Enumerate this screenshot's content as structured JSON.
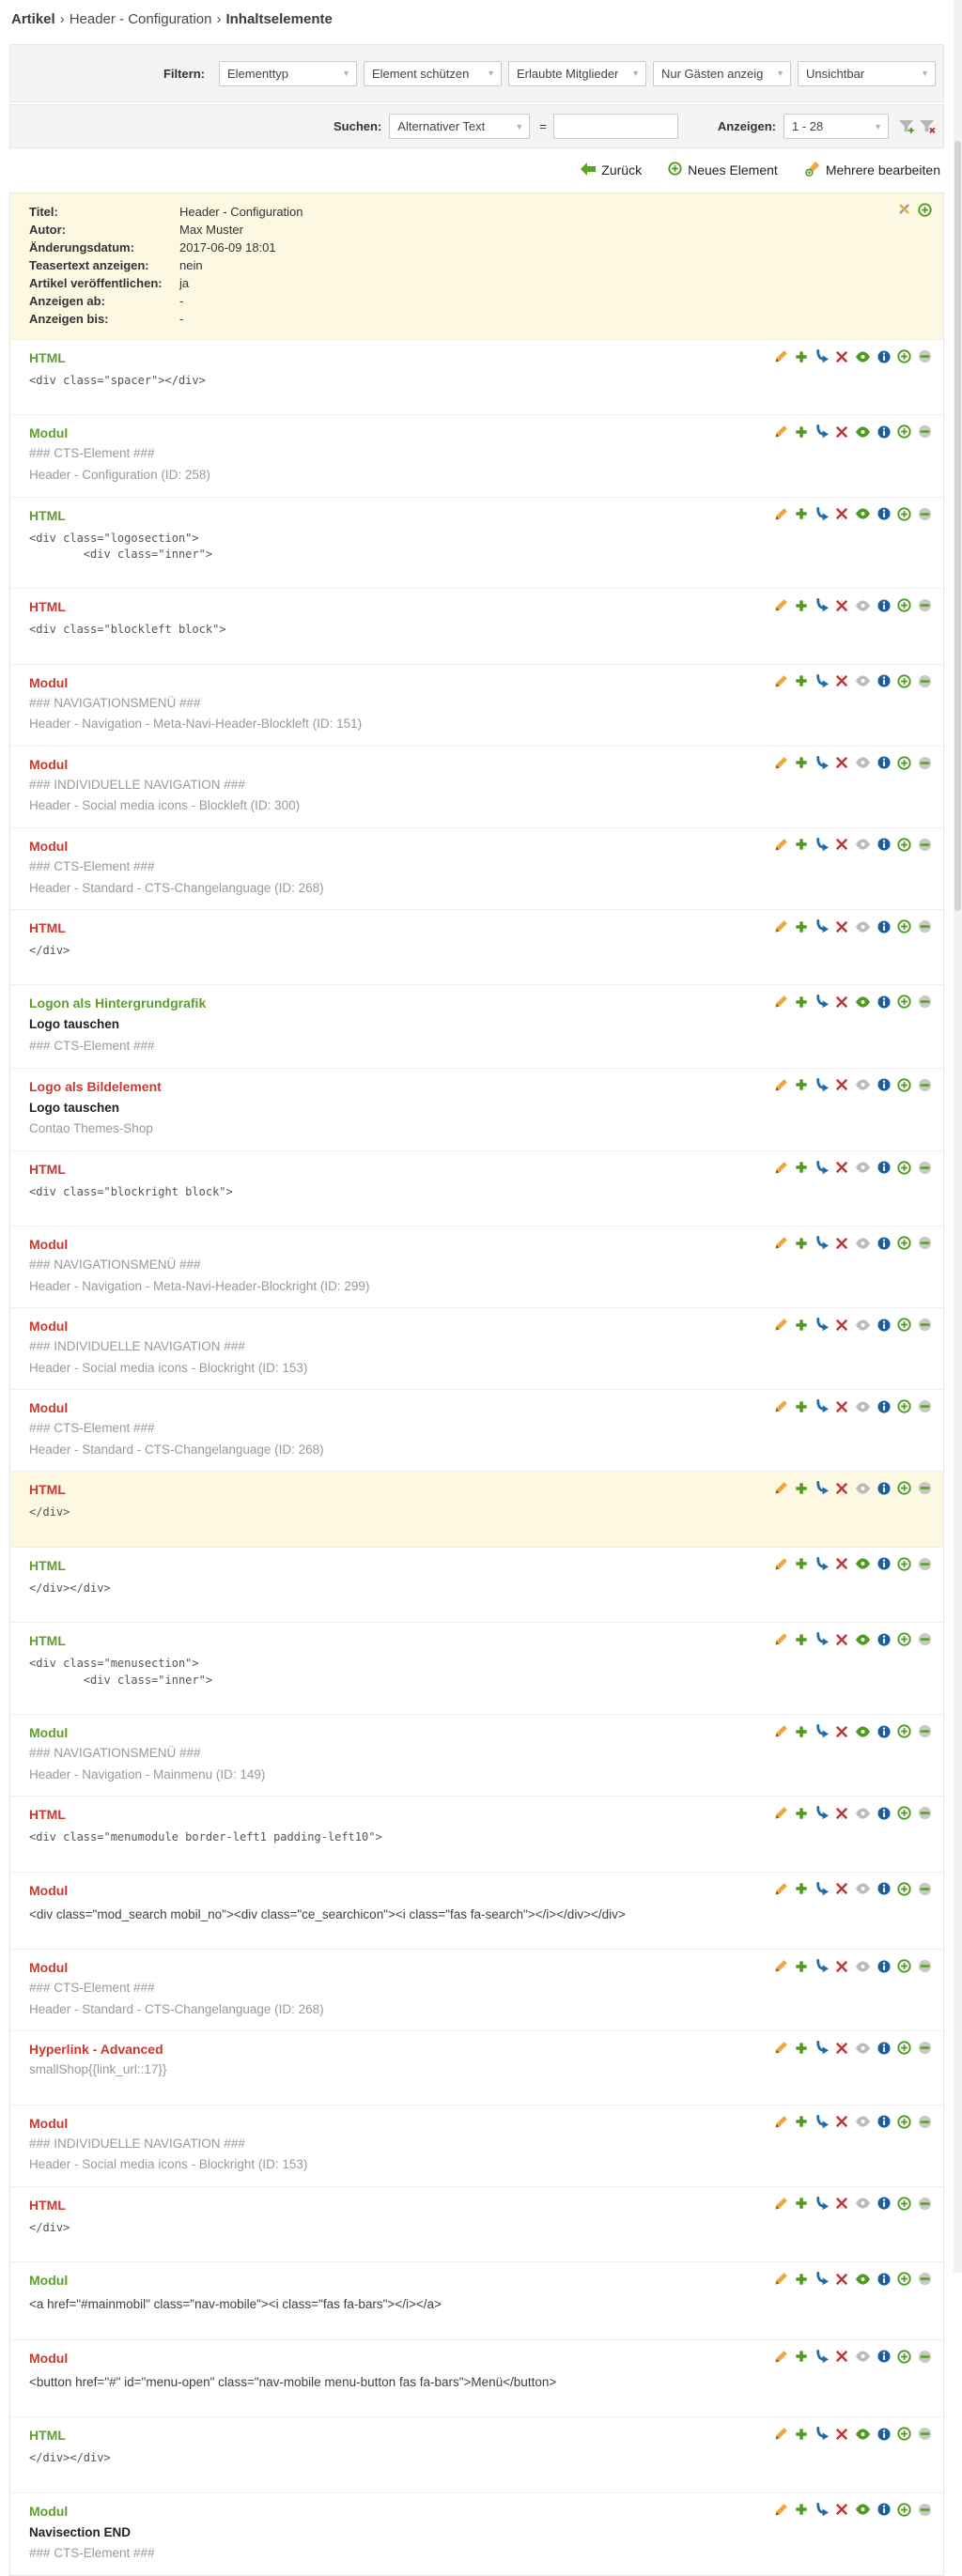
{
  "breadcrumb": {
    "parts": [
      "Artikel",
      "Header - Configuration",
      "Inhaltselemente"
    ],
    "separator": "›"
  },
  "filters": {
    "label": "Filtern:",
    "selects": [
      "Elementtyp",
      "Element schützen",
      "Erlaubte Mitglieder",
      "Nur Gästen anzeig",
      "Unsichtbar"
    ]
  },
  "search": {
    "label": "Suchen:",
    "field_select": "Alternativer Text",
    "equals": "=",
    "input_value": "",
    "show_label": "Anzeigen:",
    "range_select": "1 - 28"
  },
  "actions": {
    "back": "Zurück",
    "new_element": "Neues Element",
    "edit_multiple": "Mehrere bearbeiten"
  },
  "article_info": {
    "rows": [
      {
        "label": "Titel:",
        "value": "Header - Configuration"
      },
      {
        "label": "Autor:",
        "value": "Max Muster"
      },
      {
        "label": "Änderungsdatum:",
        "value": "2017-06-09 18:01"
      },
      {
        "label": "Teasertext anzeigen:",
        "value": "nein"
      },
      {
        "label": "Artikel veröffentlichen:",
        "value": "ja"
      },
      {
        "label": "Anzeigen ab:",
        "value": "-"
      },
      {
        "label": "Anzeigen bis:",
        "value": "-"
      }
    ]
  },
  "icon_names": [
    "edit-icon",
    "duplicate-icon",
    "move-icon",
    "delete-icon",
    "visibility-icon",
    "info-icon",
    "paste-after-icon",
    "drag-icon"
  ],
  "colors": {
    "accent_green": "#5aa421",
    "alert_red": "#c9392e",
    "highlight_yellow": "#fdf8e1",
    "link_blue": "#1e6ba8",
    "icon_orange": "#eda93c"
  },
  "elements": [
    {
      "type": "HTML",
      "state": "visible",
      "highlight": false,
      "lines": [
        {
          "kind": "code",
          "text": "<div class=\"spacer\"></div>"
        }
      ]
    },
    {
      "type": "Modul",
      "state": "visible",
      "highlight": false,
      "lines": [
        {
          "kind": "muted",
          "text": "### CTS-Element ###"
        },
        {
          "kind": "muted",
          "text": "Header - Configuration (ID: 258)"
        }
      ]
    },
    {
      "type": "HTML",
      "state": "visible",
      "highlight": false,
      "lines": [
        {
          "kind": "code",
          "text": "<div class=\"logosection\">\n        <div class=\"inner\">"
        }
      ]
    },
    {
      "type": "HTML",
      "state": "hidden",
      "highlight": false,
      "lines": [
        {
          "kind": "code",
          "text": "<div class=\"blockleft block\">"
        }
      ]
    },
    {
      "type": "Modul",
      "state": "hidden",
      "highlight": false,
      "lines": [
        {
          "kind": "muted",
          "text": "### NAVIGATIONSMENÜ ###"
        },
        {
          "kind": "muted",
          "text": "Header - Navigation - Meta-Navi-Header-Blockleft (ID: 151)"
        }
      ]
    },
    {
      "type": "Modul",
      "state": "hidden",
      "highlight": false,
      "lines": [
        {
          "kind": "muted",
          "text": "### INDIVIDUELLE NAVIGATION ###"
        },
        {
          "kind": "muted",
          "text": "Header - Social media icons - Blockleft (ID: 300)"
        }
      ]
    },
    {
      "type": "Modul",
      "state": "hidden",
      "highlight": false,
      "lines": [
        {
          "kind": "muted",
          "text": "### CTS-Element ###"
        },
        {
          "kind": "muted",
          "text": "Header - Standard - CTS-Changelanguage (ID: 268)"
        }
      ]
    },
    {
      "type": "HTML",
      "state": "hidden",
      "highlight": false,
      "lines": [
        {
          "kind": "code",
          "text": "</div>"
        }
      ]
    },
    {
      "type": "Logon als Hintergrundgrafik",
      "state": "visible",
      "highlight": false,
      "lines": [
        {
          "kind": "bold",
          "text": "Logo tauschen"
        },
        {
          "kind": "muted",
          "text": "### CTS-Element ###"
        }
      ]
    },
    {
      "type": "Logo als Bildelement",
      "state": "hidden",
      "highlight": false,
      "lines": [
        {
          "kind": "bold",
          "text": "Logo tauschen"
        },
        {
          "kind": "muted",
          "text": "Contao Themes-Shop"
        }
      ]
    },
    {
      "type": "HTML",
      "state": "hidden",
      "highlight": false,
      "lines": [
        {
          "kind": "code",
          "text": "<div class=\"blockright block\">"
        }
      ]
    },
    {
      "type": "Modul",
      "state": "hidden",
      "highlight": false,
      "lines": [
        {
          "kind": "muted",
          "text": "### NAVIGATIONSMENÜ ###"
        },
        {
          "kind": "muted",
          "text": "Header - Navigation - Meta-Navi-Header-Blockright (ID: 299)"
        }
      ]
    },
    {
      "type": "Modul",
      "state": "hidden",
      "highlight": false,
      "lines": [
        {
          "kind": "muted",
          "text": "### INDIVIDUELLE NAVIGATION ###"
        },
        {
          "kind": "muted",
          "text": "Header - Social media icons - Blockright (ID: 153)"
        }
      ]
    },
    {
      "type": "Modul",
      "state": "hidden",
      "highlight": false,
      "lines": [
        {
          "kind": "muted",
          "text": "### CTS-Element ###"
        },
        {
          "kind": "muted",
          "text": "Header - Standard - CTS-Changelanguage (ID: 268)"
        }
      ]
    },
    {
      "type": "HTML",
      "state": "hidden",
      "highlight": true,
      "lines": [
        {
          "kind": "code",
          "text": "</div>"
        }
      ]
    },
    {
      "type": "HTML",
      "state": "visible",
      "highlight": false,
      "lines": [
        {
          "kind": "code",
          "text": "</div></div>"
        }
      ]
    },
    {
      "type": "HTML",
      "state": "visible",
      "highlight": false,
      "lines": [
        {
          "kind": "code",
          "text": "<div class=\"menusection\">\n        <div class=\"inner\">"
        }
      ]
    },
    {
      "type": "Modul",
      "state": "visible",
      "highlight": false,
      "lines": [
        {
          "kind": "muted",
          "text": "### NAVIGATIONSMENÜ ###"
        },
        {
          "kind": "muted",
          "text": "Header - Navigation - Mainmenu (ID: 149)"
        }
      ]
    },
    {
      "type": "HTML",
      "state": "hidden",
      "highlight": false,
      "lines": [
        {
          "kind": "code",
          "text": "<div class=\"menumodule border-left1 padding-left10\">"
        }
      ]
    },
    {
      "type": "Modul",
      "state": "hidden",
      "highlight": false,
      "lines": [
        {
          "kind": "plain",
          "text": "<div class=\"mod_search mobil_no\"><div class=\"ce_searchicon\"><i class=\"fas fa-search\"></i></div></div>"
        }
      ]
    },
    {
      "type": "Modul",
      "state": "hidden",
      "highlight": false,
      "lines": [
        {
          "kind": "muted",
          "text": "### CTS-Element ###"
        },
        {
          "kind": "muted",
          "text": "Header - Standard - CTS-Changelanguage (ID: 268)"
        }
      ]
    },
    {
      "type": "Hyperlink - Advanced",
      "state": "hidden",
      "highlight": false,
      "lines": [
        {
          "kind": "muted",
          "text": "smallShop{{link_url::17}}"
        }
      ]
    },
    {
      "type": "Modul",
      "state": "hidden",
      "highlight": false,
      "lines": [
        {
          "kind": "muted",
          "text": "### INDIVIDUELLE NAVIGATION ###"
        },
        {
          "kind": "muted",
          "text": "Header - Social media icons - Blockright (ID: 153)"
        }
      ]
    },
    {
      "type": "HTML",
      "state": "hidden",
      "highlight": false,
      "lines": [
        {
          "kind": "code",
          "text": "</div>"
        }
      ]
    },
    {
      "type": "Modul",
      "state": "visible",
      "highlight": false,
      "lines": [
        {
          "kind": "plain",
          "text": "<a href=\"#mainmobil\" class=\"nav-mobile\"><i class=\"fas fa-bars\"></i></a>"
        }
      ]
    },
    {
      "type": "Modul",
      "state": "hidden",
      "highlight": false,
      "lines": [
        {
          "kind": "plain",
          "text": "<button href=\"#\" id=\"menu-open\" class=\"nav-mobile menu-button fas fa-bars\">Menü</button>"
        }
      ]
    },
    {
      "type": "HTML",
      "state": "visible",
      "highlight": false,
      "lines": [
        {
          "kind": "code",
          "text": "</div></div>"
        }
      ]
    },
    {
      "type": "Modul",
      "state": "visible",
      "highlight": false,
      "lines": [
        {
          "kind": "bold",
          "text": "Navisection END"
        },
        {
          "kind": "muted",
          "text": "### CTS-Element ###"
        }
      ]
    }
  ]
}
